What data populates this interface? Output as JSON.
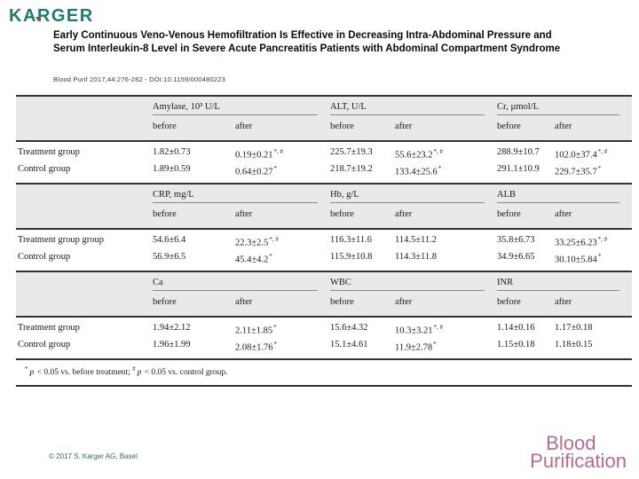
{
  "header": {
    "logo": "KARGER",
    "title": "Early Continuous Veno-Venous Hemofiltration Is Effective in Decreasing Intra-Abdominal Pressure and Serum Interleukin-8 Level in Severe Acute Pancreatitis Patients with Abdominal Compartment Syndrome",
    "citation": "Blood Purif 2017;44:276-282 -  DOI:10.1159/000480223"
  },
  "table": {
    "col_subheaders": [
      "before",
      "after"
    ],
    "sections": [
      {
        "groups": [
          "Amylase, 10³ U/L",
          "ALT, U/L",
          "Cr, µmol/L"
        ],
        "rows": [
          {
            "label": "Treatment group",
            "cells": [
              {
                "v": "1.82±0.73",
                "m": ""
              },
              {
                "v": "0.19±0.21",
                "m": "*, #"
              },
              {
                "v": "225.7±19.3",
                "m": ""
              },
              {
                "v": "55.6±23.2",
                "m": "*, #"
              },
              {
                "v": "288.9±10.7",
                "m": ""
              },
              {
                "v": "102.0±37.4",
                "m": "*, #"
              }
            ]
          },
          {
            "label": "Control group",
            "cells": [
              {
                "v": "1.89±0.59",
                "m": ""
              },
              {
                "v": "0.64±0.27",
                "m": "*"
              },
              {
                "v": "218.7±19.2",
                "m": ""
              },
              {
                "v": "133.4±25.6",
                "m": "*"
              },
              {
                "v": "291.1±10.9",
                "m": ""
              },
              {
                "v": "229.7±35.7",
                "m": "*"
              }
            ]
          }
        ]
      },
      {
        "groups": [
          "CRP, mg/L",
          "Hb, g/L",
          "ALB"
        ],
        "rows": [
          {
            "label": "Treatment group group",
            "cells": [
              {
                "v": "54.6±6.4",
                "m": ""
              },
              {
                "v": "22.3±2.5",
                "m": "*, #"
              },
              {
                "v": "116.3±11.6",
                "m": ""
              },
              {
                "v": "114.5±11.2",
                "m": ""
              },
              {
                "v": "35.8±6.73",
                "m": ""
              },
              {
                "v": "33.25±6.23",
                "m": "*, #"
              }
            ]
          },
          {
            "label": "Control group",
            "cells": [
              {
                "v": "56.9±6.5",
                "m": ""
              },
              {
                "v": "45.4±4.2",
                "m": "*"
              },
              {
                "v": "115.9±10.8",
                "m": ""
              },
              {
                "v": "114.3±11.8",
                "m": ""
              },
              {
                "v": "34.9±6.65",
                "m": ""
              },
              {
                "v": "30.10±5.84",
                "m": "*"
              }
            ]
          }
        ]
      },
      {
        "groups": [
          "Ca",
          "WBC",
          "INR"
        ],
        "rows": [
          {
            "label": "Treatment group",
            "cells": [
              {
                "v": "1.94±2.12",
                "m": ""
              },
              {
                "v": "2.11±1.85",
                "m": "*"
              },
              {
                "v": "15.6±4.32",
                "m": ""
              },
              {
                "v": "10.3±3.21",
                "m": "*, #"
              },
              {
                "v": "1.14±0.16",
                "m": ""
              },
              {
                "v": "1.17±0.18",
                "m": ""
              }
            ]
          },
          {
            "label": "Control group",
            "cells": [
              {
                "v": "1.96±1.99",
                "m": ""
              },
              {
                "v": "2.08±1.76",
                "m": "*"
              },
              {
                "v": "15.1±4.61",
                "m": ""
              },
              {
                "v": "11.9±2.78",
                "m": "*"
              },
              {
                "v": "1.15±0.18",
                "m": ""
              },
              {
                "v": "1.18±0.15",
                "m": ""
              }
            ]
          }
        ]
      }
    ],
    "footnote": {
      "m1": "*",
      "p1": "p",
      "t1": " < 0.05 vs. before treatment; ",
      "m2": "#",
      "p2": "p",
      "t2": " < 0.05 vs. control group."
    }
  },
  "footer": {
    "copyright": "© 2017 S. Karger AG, Basel",
    "journal_logo_line1": "Blood",
    "journal_logo_line2": "Purification"
  },
  "colors": {
    "brand_teal": "#1f7b6f",
    "logo_accent_red": "#c43b3b",
    "journal_pink": "#bc6b86",
    "table_band_gray": "#e9e9e9",
    "rule_dark": "#333333"
  }
}
